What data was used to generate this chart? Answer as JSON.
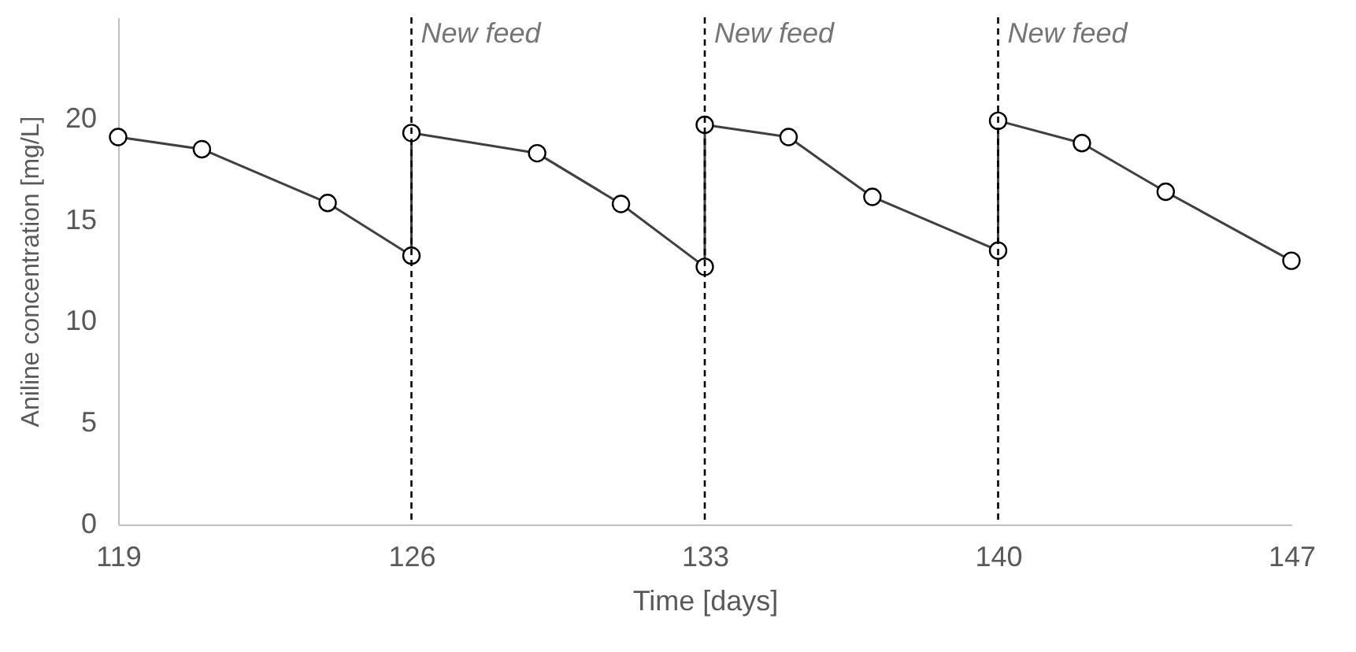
{
  "chart_data": {
    "type": "line",
    "xlabel": "Time [days]",
    "ylabel": "Aniline concentration [mg/L]",
    "x": [
      119,
      121,
      124,
      126,
      126,
      129,
      131,
      133,
      133,
      135,
      137,
      140,
      140,
      142,
      144,
      147
    ],
    "series": [
      {
        "color": "#404040",
        "values": [
          19.1,
          18.5,
          15.85,
          13.25,
          19.3,
          18.3,
          15.8,
          12.7,
          19.7,
          19.1,
          16.15,
          13.5,
          19.9,
          18.8,
          16.4,
          13.0
        ]
      }
    ],
    "xlim": [
      119,
      147
    ],
    "xticks": [
      119,
      126,
      133,
      140,
      147
    ],
    "ylim": [
      0,
      25
    ],
    "yticks": [
      0,
      5,
      10,
      15,
      20
    ],
    "ref_lines": [
      {
        "axis": "x",
        "value": 126,
        "label": "New feed",
        "color": "#000000",
        "line_style": "dashed"
      },
      {
        "axis": "x",
        "value": 133,
        "label": "New feed",
        "color": "#000000",
        "line_style": "dashed"
      },
      {
        "axis": "x",
        "value": 140,
        "label": "New feed",
        "color": "#000000",
        "line_style": "dashed"
      }
    ],
    "marker": "circle",
    "line_style": "solid",
    "grid": false
  }
}
